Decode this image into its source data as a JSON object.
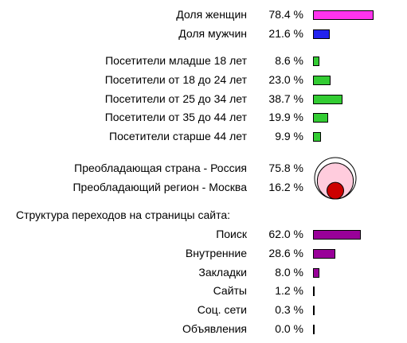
{
  "colors": {
    "women": "#ff33ee",
    "men": "#2222ee",
    "age": "#33cc33",
    "traffic": "#990099",
    "circle_outer": "#ffffff",
    "circle_mid": "#ffccdd",
    "circle_inner": "#cc0000"
  },
  "chart_data": [
    {
      "type": "bar",
      "orientation": "horizontal",
      "series": [
        {
          "values": [
            78.4,
            21.6
          ]
        }
      ],
      "categories": [
        "Доля женщин",
        "Доля мужчин"
      ],
      "value_labels": [
        "78.4 %",
        "21.6 %"
      ]
    },
    {
      "type": "bar",
      "orientation": "horizontal",
      "categories": [
        "Посетители младше 18 лет",
        "Посетители от 18 до 24 лет",
        "Посетители от 25 до 34 лет",
        "Посетители от 35 до 44 лет",
        "Посетители старше 44 лет"
      ],
      "series": [
        {
          "values": [
            8.6,
            23.0,
            38.7,
            19.9,
            9.9
          ]
        }
      ],
      "value_labels": [
        "8.6 %",
        "23.0 %",
        "38.7 %",
        "19.9 %",
        "9.9 %"
      ]
    },
    {
      "type": "pie",
      "categories": [
        "Преобладающая страна - Россия",
        "Преобладающий регион - Москва"
      ],
      "series": [
        {
          "values": [
            75.8,
            16.2
          ]
        }
      ],
      "value_labels": [
        "75.8 %",
        "16.2 %"
      ]
    },
    {
      "type": "bar",
      "orientation": "horizontal",
      "title": "Структура переходов на страницы сайта:",
      "categories": [
        "Поиск",
        "Внутренние",
        "Закладки",
        "Сайты",
        "Соц. сети",
        "Объявления"
      ],
      "series": [
        {
          "values": [
            62.0,
            28.6,
            8.0,
            1.2,
            0.3,
            0.0
          ]
        }
      ],
      "value_labels": [
        "62.0 %",
        "28.6 %",
        "8.0 %",
        "1.2 %",
        "0.3 %",
        "0.0 %"
      ]
    }
  ]
}
